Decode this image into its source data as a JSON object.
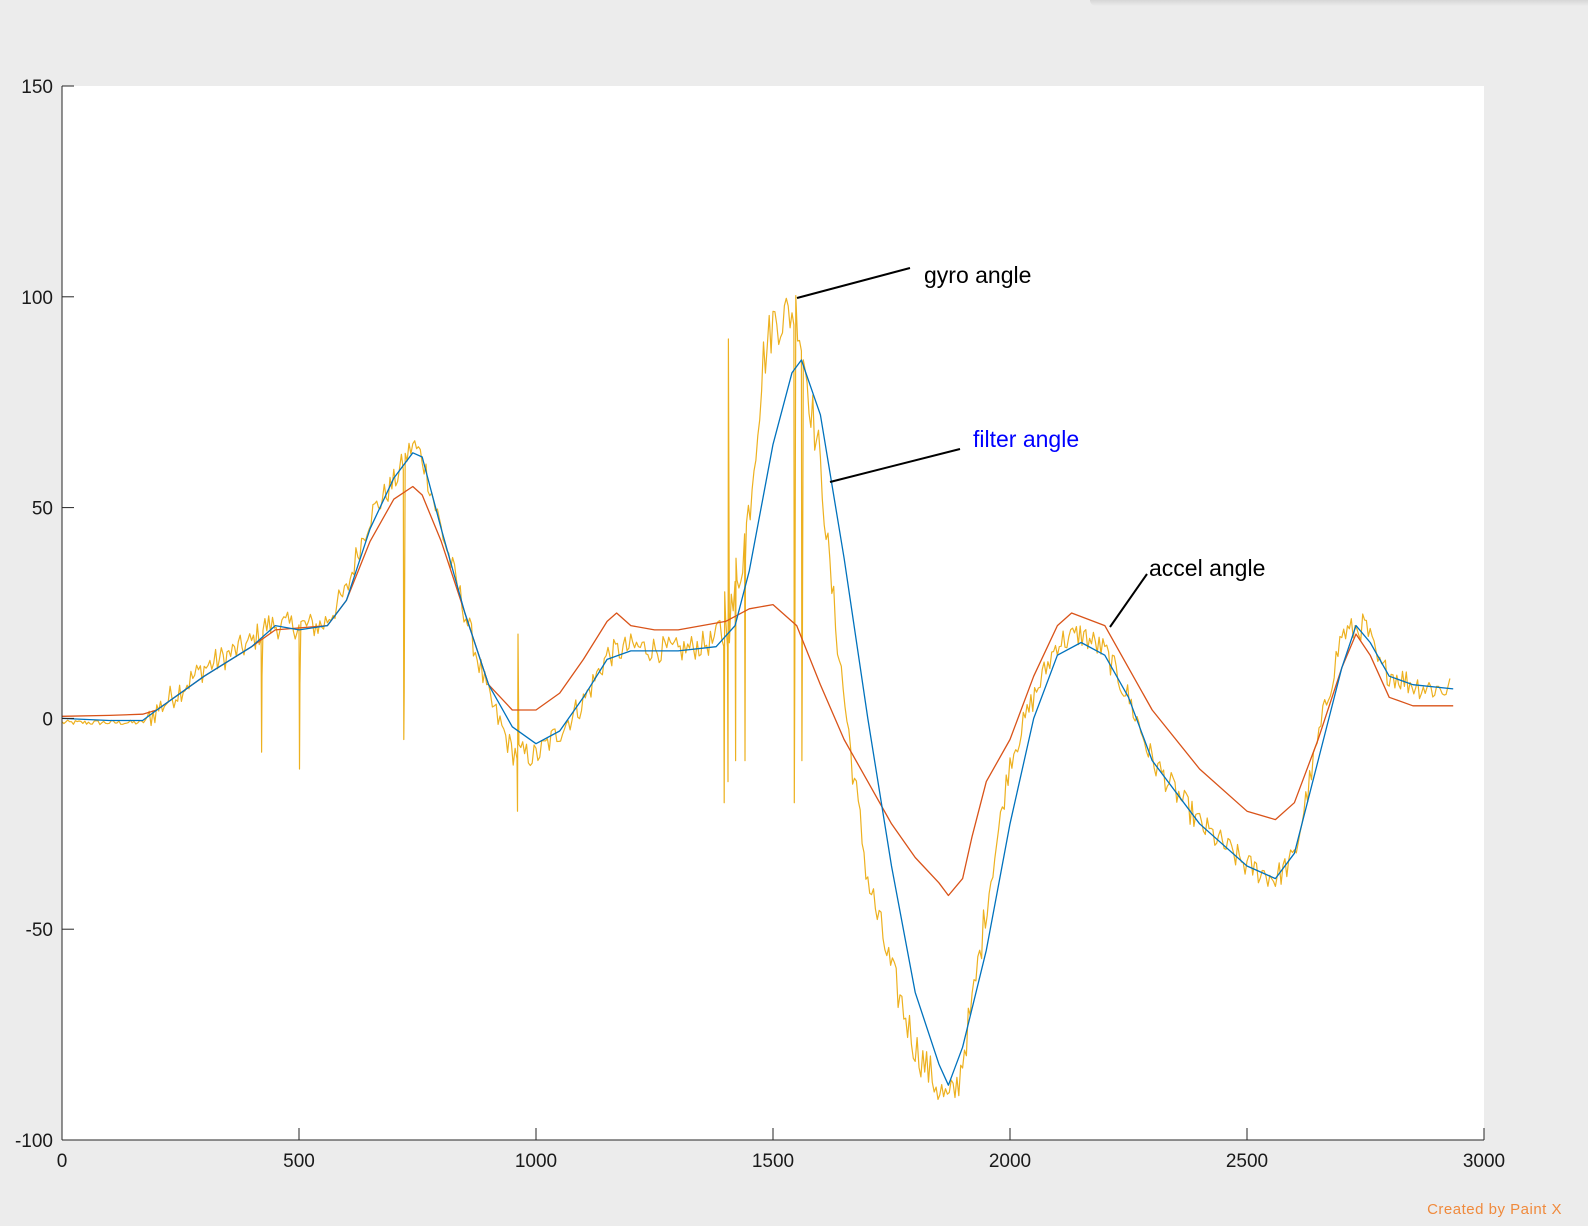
{
  "chart_data": {
    "type": "line",
    "title": "",
    "xlabel": "",
    "ylabel": "",
    "xlim": [
      0,
      3000
    ],
    "ylim": [
      -100,
      150
    ],
    "xticks": [
      0,
      500,
      1000,
      1500,
      2000,
      2500,
      3000
    ],
    "yticks": [
      -100,
      -50,
      0,
      50,
      100,
      150
    ],
    "grid": false,
    "series": [
      {
        "key": "gyro",
        "color": "#EDB120",
        "noisy": true,
        "points": [
          [
            0,
            -1
          ],
          [
            100,
            -1
          ],
          [
            170,
            -1
          ],
          [
            200,
            2
          ],
          [
            300,
            12
          ],
          [
            400,
            18
          ],
          [
            430,
            22
          ],
          [
            550,
            22
          ],
          [
            600,
            30
          ],
          [
            620,
            38
          ],
          [
            650,
            48
          ],
          [
            700,
            56
          ],
          [
            740,
            65
          ],
          [
            760,
            62
          ],
          [
            800,
            45
          ],
          [
            850,
            25
          ],
          [
            900,
            5
          ],
          [
            950,
            -8
          ],
          [
            1000,
            -9
          ],
          [
            1050,
            -3
          ],
          [
            1100,
            4
          ],
          [
            1150,
            15
          ],
          [
            1200,
            17
          ],
          [
            1300,
            16
          ],
          [
            1370,
            18
          ],
          [
            1400,
            21
          ],
          [
            1420,
            28
          ],
          [
            1450,
            50
          ],
          [
            1480,
            85
          ],
          [
            1500,
            94
          ],
          [
            1550,
            97
          ],
          [
            1570,
            82
          ],
          [
            1600,
            60
          ],
          [
            1620,
            35
          ],
          [
            1650,
            5
          ],
          [
            1680,
            -22
          ],
          [
            1700,
            -38
          ],
          [
            1750,
            -60
          ],
          [
            1800,
            -78
          ],
          [
            1850,
            -88
          ],
          [
            1870,
            -91
          ],
          [
            1890,
            -87
          ],
          [
            1920,
            -68
          ],
          [
            1950,
            -45
          ],
          [
            2000,
            -10
          ],
          [
            2050,
            5
          ],
          [
            2100,
            18
          ],
          [
            2150,
            20
          ],
          [
            2200,
            16
          ],
          [
            2250,
            5
          ],
          [
            2300,
            -10
          ],
          [
            2400,
            -25
          ],
          [
            2500,
            -35
          ],
          [
            2560,
            -38
          ],
          [
            2600,
            -33
          ],
          [
            2650,
            -5
          ],
          [
            2700,
            20
          ],
          [
            2750,
            22
          ],
          [
            2780,
            12
          ],
          [
            2850,
            8
          ],
          [
            2900,
            7
          ],
          [
            2930,
            7
          ]
        ],
        "spikes": [
          [
            420,
            -8,
            10
          ],
          [
            500,
            -12,
            8
          ],
          [
            510,
            24,
            16
          ],
          [
            550,
            -8,
            20
          ],
          [
            590,
            -8,
            20
          ],
          [
            720,
            -5,
            6
          ],
          [
            950,
            -25,
            14
          ],
          [
            960,
            -22,
            20
          ],
          [
            970,
            -15,
            12
          ],
          [
            1390,
            -35,
            78
          ],
          [
            1395,
            -20,
            30
          ],
          [
            1405,
            -15,
            90
          ],
          [
            1420,
            -10,
            38
          ],
          [
            1440,
            -10,
            38
          ],
          [
            1545,
            -20,
            12
          ],
          [
            1560,
            -10,
            18
          ]
        ]
      },
      {
        "key": "filter",
        "color": "#0072BD",
        "noisy": false,
        "points": [
          [
            0,
            0
          ],
          [
            100,
            -0.5
          ],
          [
            170,
            -0.5
          ],
          [
            200,
            2
          ],
          [
            300,
            10
          ],
          [
            400,
            17
          ],
          [
            450,
            22
          ],
          [
            500,
            21
          ],
          [
            560,
            22
          ],
          [
            600,
            28
          ],
          [
            650,
            45
          ],
          [
            700,
            57
          ],
          [
            740,
            63
          ],
          [
            760,
            62
          ],
          [
            800,
            45
          ],
          [
            850,
            25
          ],
          [
            900,
            8
          ],
          [
            950,
            -2
          ],
          [
            1000,
            -6
          ],
          [
            1050,
            -3
          ],
          [
            1100,
            5
          ],
          [
            1150,
            14
          ],
          [
            1200,
            16
          ],
          [
            1300,
            16
          ],
          [
            1380,
            17
          ],
          [
            1420,
            22
          ],
          [
            1450,
            35
          ],
          [
            1500,
            65
          ],
          [
            1540,
            82
          ],
          [
            1560,
            85
          ],
          [
            1600,
            72
          ],
          [
            1650,
            38
          ],
          [
            1700,
            0
          ],
          [
            1750,
            -35
          ],
          [
            1800,
            -65
          ],
          [
            1850,
            -82
          ],
          [
            1870,
            -87
          ],
          [
            1900,
            -78
          ],
          [
            1950,
            -55
          ],
          [
            2000,
            -25
          ],
          [
            2050,
            0
          ],
          [
            2100,
            15
          ],
          [
            2150,
            18
          ],
          [
            2200,
            15
          ],
          [
            2250,
            5
          ],
          [
            2300,
            -10
          ],
          [
            2400,
            -25
          ],
          [
            2500,
            -35
          ],
          [
            2560,
            -38
          ],
          [
            2600,
            -32
          ],
          [
            2650,
            -10
          ],
          [
            2700,
            12
          ],
          [
            2730,
            22
          ],
          [
            2760,
            18
          ],
          [
            2800,
            10
          ],
          [
            2850,
            8
          ],
          [
            2935,
            7
          ]
        ]
      },
      {
        "key": "accel",
        "color": "#D95319",
        "noisy": false,
        "points": [
          [
            0,
            0.5
          ],
          [
            100,
            0.7
          ],
          [
            170,
            1
          ],
          [
            200,
            2
          ],
          [
            300,
            10
          ],
          [
            400,
            17
          ],
          [
            450,
            21
          ],
          [
            560,
            22
          ],
          [
            600,
            28
          ],
          [
            650,
            42
          ],
          [
            700,
            52
          ],
          [
            740,
            55
          ],
          [
            760,
            53
          ],
          [
            800,
            42
          ],
          [
            850,
            25
          ],
          [
            900,
            8
          ],
          [
            950,
            2
          ],
          [
            1000,
            2
          ],
          [
            1050,
            6
          ],
          [
            1100,
            14
          ],
          [
            1150,
            23
          ],
          [
            1170,
            25
          ],
          [
            1200,
            22
          ],
          [
            1250,
            21
          ],
          [
            1300,
            21
          ],
          [
            1400,
            23
          ],
          [
            1450,
            26
          ],
          [
            1500,
            27
          ],
          [
            1550,
            22
          ],
          [
            1600,
            8
          ],
          [
            1650,
            -5
          ],
          [
            1700,
            -15
          ],
          [
            1750,
            -25
          ],
          [
            1800,
            -33
          ],
          [
            1850,
            -39
          ],
          [
            1870,
            -42
          ],
          [
            1900,
            -38
          ],
          [
            1920,
            -28
          ],
          [
            1950,
            -15
          ],
          [
            2000,
            -5
          ],
          [
            2050,
            10
          ],
          [
            2100,
            22
          ],
          [
            2130,
            25
          ],
          [
            2200,
            22
          ],
          [
            2250,
            12
          ],
          [
            2300,
            2
          ],
          [
            2400,
            -12
          ],
          [
            2500,
            -22
          ],
          [
            2560,
            -24
          ],
          [
            2600,
            -20
          ],
          [
            2650,
            -5
          ],
          [
            2700,
            12
          ],
          [
            2730,
            20
          ],
          [
            2760,
            15
          ],
          [
            2800,
            5
          ],
          [
            2850,
            3
          ],
          [
            2935,
            3
          ]
        ]
      }
    ],
    "annotations": [
      {
        "key": "gyro_label",
        "text": "gyro angle",
        "color": "#000000"
      },
      {
        "key": "filter_label",
        "text": "filter angle",
        "color": "#0000FF"
      },
      {
        "key": "accel_label",
        "text": "accel angle",
        "color": "#000000"
      }
    ]
  },
  "watermark": "Created by Paint X"
}
